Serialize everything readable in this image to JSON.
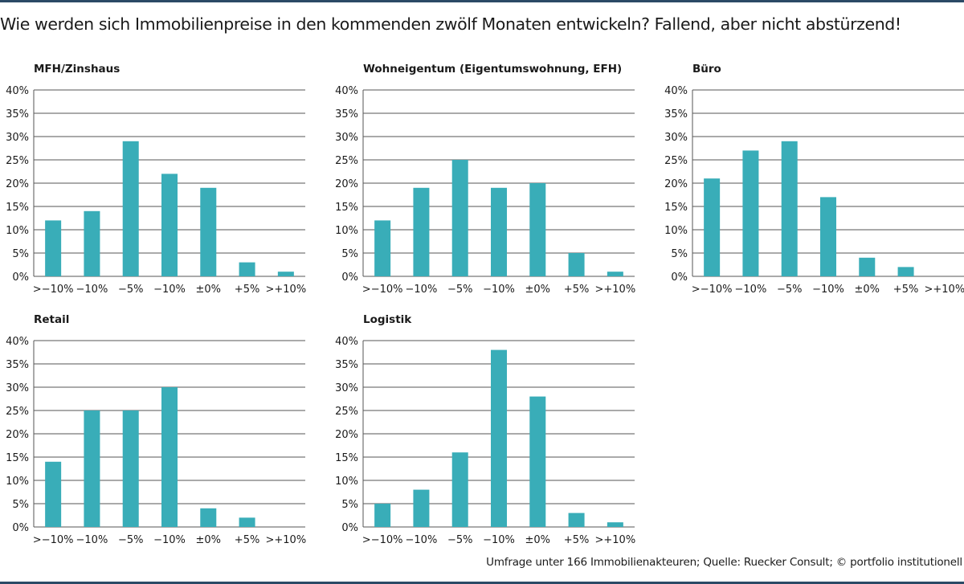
{
  "header": {
    "title": "Wie werden sich Immobilienpreise in den kommenden zwölf Monaten entwickeln? Fallend, aber nicht abstürzend!"
  },
  "footer": {
    "source": "Umfrage unter 166 Immobilienakteuren; Quelle: Ruecker Consult; © portfolio institutionell"
  },
  "colors": {
    "bar": "#39adb8",
    "grid": "#555555",
    "rule": "#2b4a66"
  },
  "chart_data": [
    {
      "type": "bar",
      "title": "MFH/Zinshaus",
      "categories": [
        ">−10%",
        "−10%",
        "−5%",
        "−10%",
        "±0%",
        "+5%",
        ">+10%"
      ],
      "values": [
        12,
        14,
        29,
        22,
        19,
        3,
        1
      ],
      "ylim": [
        0,
        40
      ],
      "yticks": [
        "0%",
        "5%",
        "10%",
        "15%",
        "20%",
        "25%",
        "30%",
        "35%",
        "40%"
      ],
      "grid": true
    },
    {
      "type": "bar",
      "title": "Wohneigentum (Eigentumswohnung, EFH)",
      "categories": [
        ">−10%",
        "−10%",
        "−5%",
        "−10%",
        "±0%",
        "+5%",
        ">+10%"
      ],
      "values": [
        12,
        19,
        25,
        19,
        20,
        5,
        1
      ],
      "ylim": [
        0,
        40
      ],
      "yticks": [
        "0%",
        "5%",
        "10%",
        "15%",
        "20%",
        "25%",
        "30%",
        "35%",
        "40%"
      ],
      "grid": true
    },
    {
      "type": "bar",
      "title": "Büro",
      "categories": [
        ">−10%",
        "−10%",
        "−5%",
        "−10%",
        "±0%",
        "+5%",
        ">+10%"
      ],
      "values": [
        21,
        27,
        29,
        17,
        4,
        2,
        0
      ],
      "ylim": [
        0,
        40
      ],
      "yticks": [
        "0%",
        "5%",
        "10%",
        "15%",
        "20%",
        "25%",
        "30%",
        "35%",
        "40%"
      ],
      "grid": true
    },
    {
      "type": "bar",
      "title": "Retail",
      "categories": [
        ">−10%",
        "−10%",
        "−5%",
        "−10%",
        "±0%",
        "+5%",
        ">+10%"
      ],
      "values": [
        14,
        25,
        25,
        30,
        4,
        2,
        0
      ],
      "ylim": [
        0,
        40
      ],
      "yticks": [
        "0%",
        "5%",
        "10%",
        "15%",
        "20%",
        "25%",
        "30%",
        "35%",
        "40%"
      ],
      "grid": true
    },
    {
      "type": "bar",
      "title": "Logistik",
      "categories": [
        ">−10%",
        "−10%",
        "−5%",
        "−10%",
        "±0%",
        "+5%",
        ">+10%"
      ],
      "values": [
        5,
        8,
        16,
        38,
        28,
        3,
        1
      ],
      "ylim": [
        0,
        40
      ],
      "yticks": [
        "0%",
        "5%",
        "10%",
        "15%",
        "20%",
        "25%",
        "30%",
        "35%",
        "40%"
      ],
      "grid": true
    }
  ]
}
